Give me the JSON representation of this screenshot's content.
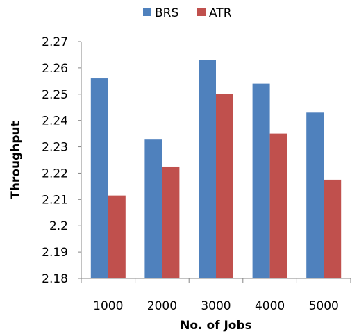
{
  "chart_data": {
    "type": "bar",
    "title": "",
    "xlabel": "No. of Jobs",
    "ylabel": "Throughput",
    "categories": [
      "1000",
      "2000",
      "3000",
      "4000",
      "5000"
    ],
    "series": [
      {
        "name": "BRS",
        "color": "#4F81BD",
        "values": [
          2.256,
          2.233,
          2.263,
          2.254,
          2.243
        ]
      },
      {
        "name": "ATR",
        "color": "#C0504D",
        "values": [
          2.2115,
          2.2225,
          2.25,
          2.235,
          2.2175
        ]
      }
    ],
    "ylim": [
      2.18,
      2.27
    ],
    "yticks": [
      "2.18",
      "2.19",
      "2.2",
      "2.21",
      "2.22",
      "2.23",
      "2.24",
      "2.25",
      "2.26",
      "2.27"
    ],
    "grid": false,
    "legend_position": "top"
  }
}
